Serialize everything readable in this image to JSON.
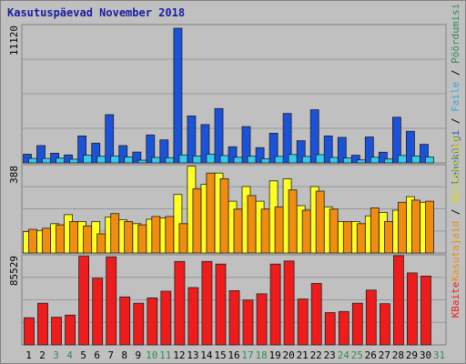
{
  "title": "Kasutuspäevad November 2018",
  "colors": {
    "pages": "#1a52d9",
    "hits": "#33ccee",
    "visits": "#f08c10",
    "visitors": "#ffff22",
    "bandwidth": "#ee1c1c",
    "weekday_label": "#000000",
    "weekend_label": "#2e8b57",
    "panel_bg": "#c0c0c0",
    "grid": "#9a9a9a"
  },
  "chart_data": [
    {
      "type": "bar",
      "title": "",
      "ymax_label": "11120",
      "ylim": [
        0,
        11120
      ],
      "legend": [
        {
          "text": "Pöördumisi",
          "color": "#2e8b57"
        },
        {
          "text": " / ",
          "color": "#000000"
        },
        {
          "text": "Faile",
          "color": "#33aadd"
        },
        {
          "text": " / ",
          "color": "#000000"
        },
        {
          "text": "Lehekülgi",
          "color": "#1a52d9"
        }
      ],
      "categories": [
        "1",
        "2",
        "3",
        "4",
        "5",
        "6",
        "7",
        "8",
        "9",
        "10",
        "11",
        "12",
        "13",
        "14",
        "15",
        "16",
        "17",
        "18",
        "19",
        "20",
        "21",
        "22",
        "23",
        "24",
        "25",
        "26",
        "27",
        "28",
        "29",
        "30",
        "31"
      ],
      "series": [
        {
          "key": "pages",
          "values": [
            700,
            1400,
            780,
            640,
            2180,
            1600,
            3900,
            1400,
            880,
            2260,
            1860,
            10900,
            3800,
            3100,
            4400,
            1300,
            2940,
            1240,
            2400,
            4000,
            1800,
            4300,
            2180,
            2060,
            620,
            2100,
            860,
            3700,
            2560,
            1500,
            0
          ]
        },
        {
          "key": "hits",
          "values": [
            360,
            360,
            380,
            300,
            620,
            540,
            560,
            480,
            220,
            440,
            420,
            640,
            560,
            700,
            600,
            460,
            540,
            340,
            520,
            680,
            520,
            660,
            440,
            400,
            240,
            460,
            320,
            600,
            560,
            480,
            0
          ]
        }
      ]
    },
    {
      "type": "bar",
      "title": "",
      "ymax_label": "388",
      "ylim": [
        0,
        388
      ],
      "legend": [
        {
          "text": "Külastajaid",
          "color": "#dddd00"
        },
        {
          "text": " / ",
          "color": "#000000"
        },
        {
          "text": "Kasutajaid",
          "color": "#f08c10"
        }
      ],
      "categories": [
        "1",
        "2",
        "3",
        "4",
        "5",
        "6",
        "7",
        "8",
        "9",
        "10",
        "11",
        "12",
        "13",
        "14",
        "15",
        "16",
        "17",
        "18",
        "19",
        "20",
        "21",
        "22",
        "23",
        "24",
        "25",
        "26",
        "27",
        "28",
        "29",
        "30",
        "31"
      ],
      "series": [
        {
          "key": "visitors",
          "values": [
            95,
            100,
            130,
            170,
            140,
            140,
            160,
            148,
            130,
            150,
            155,
            260,
            385,
            305,
            355,
            230,
            295,
            230,
            320,
            330,
            210,
            295,
            205,
            140,
            140,
            165,
            180,
            190,
            250,
            225,
            0
          ]
        },
        {
          "key": "visits",
          "values": [
            105,
            110,
            125,
            140,
            120,
            85,
            175,
            140,
            125,
            162,
            162,
            130,
            285,
            355,
            330,
            195,
            255,
            195,
            205,
            280,
            190,
            275,
            195,
            140,
            130,
            200,
            140,
            225,
            235,
            230,
            0
          ]
        }
      ]
    },
    {
      "type": "bar",
      "title": "",
      "ymax_label": "85529",
      "ylim": [
        0,
        85529
      ],
      "legend": [
        {
          "text": "KBaite",
          "color": "#ee1c1c"
        }
      ],
      "categories": [
        "1",
        "2",
        "3",
        "4",
        "5",
        "6",
        "7",
        "8",
        "9",
        "10",
        "11",
        "12",
        "13",
        "14",
        "15",
        "16",
        "17",
        "18",
        "19",
        "20",
        "21",
        "22",
        "23",
        "24",
        "25",
        "26",
        "27",
        "28",
        "29",
        "30",
        "31"
      ],
      "series": [
        {
          "key": "bandwidth",
          "values": [
            26000,
            40000,
            26500,
            28500,
            85000,
            64000,
            84500,
            46000,
            40000,
            45000,
            51500,
            80000,
            55000,
            80000,
            77500,
            52000,
            43000,
            49000,
            77500,
            80500,
            44000,
            59000,
            31000,
            32000,
            40000,
            52500,
            39500,
            86000,
            69000,
            66000,
            0
          ]
        }
      ]
    }
  ],
  "days": [
    {
      "label": "1",
      "weekend": false
    },
    {
      "label": "2",
      "weekend": false
    },
    {
      "label": "3",
      "weekend": true
    },
    {
      "label": "4",
      "weekend": true
    },
    {
      "label": "5",
      "weekend": false
    },
    {
      "label": "6",
      "weekend": false
    },
    {
      "label": "7",
      "weekend": false
    },
    {
      "label": "8",
      "weekend": false
    },
    {
      "label": "9",
      "weekend": false
    },
    {
      "label": "10",
      "weekend": true
    },
    {
      "label": "11",
      "weekend": true
    },
    {
      "label": "12",
      "weekend": false
    },
    {
      "label": "13",
      "weekend": false
    },
    {
      "label": "14",
      "weekend": false
    },
    {
      "label": "15",
      "weekend": false
    },
    {
      "label": "16",
      "weekend": false
    },
    {
      "label": "17",
      "weekend": true
    },
    {
      "label": "18",
      "weekend": true
    },
    {
      "label": "19",
      "weekend": false
    },
    {
      "label": "20",
      "weekend": false
    },
    {
      "label": "21",
      "weekend": false
    },
    {
      "label": "22",
      "weekend": false
    },
    {
      "label": "23",
      "weekend": false
    },
    {
      "label": "24",
      "weekend": true
    },
    {
      "label": "25",
      "weekend": true
    },
    {
      "label": "26",
      "weekend": false
    },
    {
      "label": "27",
      "weekend": false
    },
    {
      "label": "28",
      "weekend": false
    },
    {
      "label": "29",
      "weekend": false
    },
    {
      "label": "30",
      "weekend": false
    },
    {
      "label": "31",
      "weekend": true
    }
  ]
}
